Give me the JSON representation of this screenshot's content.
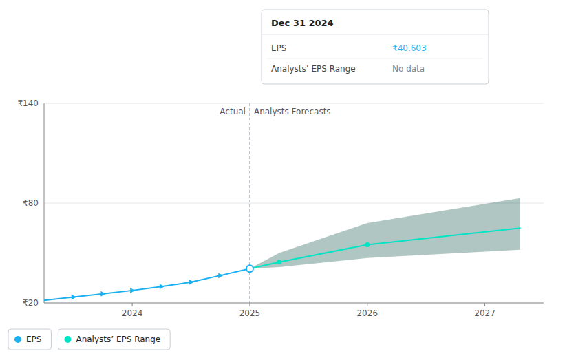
{
  "chart_data": {
    "type": "line",
    "xlim": [
      2023.25,
      2027.5
    ],
    "xticks": [
      2024,
      2025,
      2026,
      2027
    ],
    "ylim": [
      20,
      140
    ],
    "yticks": [
      {
        "value": 20,
        "label": "₹20"
      },
      {
        "value": 80,
        "label": "₹80"
      },
      {
        "value": 140,
        "label": "₹140"
      }
    ],
    "grid": true,
    "legend": "bottom-left",
    "series": [
      {
        "name": "EPS",
        "color": "#1ab0f0",
        "marker": "triangle",
        "x": [
          2023.25,
          2023.5,
          2023.75,
          2024.0,
          2024.25,
          2024.5,
          2024.75,
          2025.0
        ],
        "values": [
          21.5,
          23.5,
          25.5,
          27.5,
          29.8,
          32.5,
          36.5,
          40.603
        ]
      },
      {
        "name": "Analysts’ EPS Range",
        "color": "#00e5c5",
        "band_color": "#1a5c50",
        "marker": "circle",
        "x": [
          2025.0,
          2025.25,
          2026.0,
          2027.3
        ],
        "values": [
          40.603,
          44.5,
          55.0,
          65.0
        ],
        "upper": [
          40.603,
          50.0,
          68.0,
          83.0
        ],
        "lower": [
          40.603,
          41.5,
          47.0,
          52.0
        ]
      }
    ],
    "annotations": [
      {
        "type": "vline",
        "x": 2025.0
      },
      {
        "text": "Actual",
        "x": 2025.0,
        "position": "left"
      },
      {
        "text": "Analysts Forecasts",
        "x": 2025.0,
        "position": "right"
      }
    ],
    "tooltip": {
      "title": "Dec 31 2024",
      "x": 2025.0,
      "rows": [
        {
          "label": "EPS",
          "value": 40.603,
          "value_label": "₹40.603",
          "color": "#1ab0f0"
        },
        {
          "label": "Analysts’ EPS Range",
          "value_label": "No data",
          "color": "#778899"
        }
      ]
    }
  }
}
